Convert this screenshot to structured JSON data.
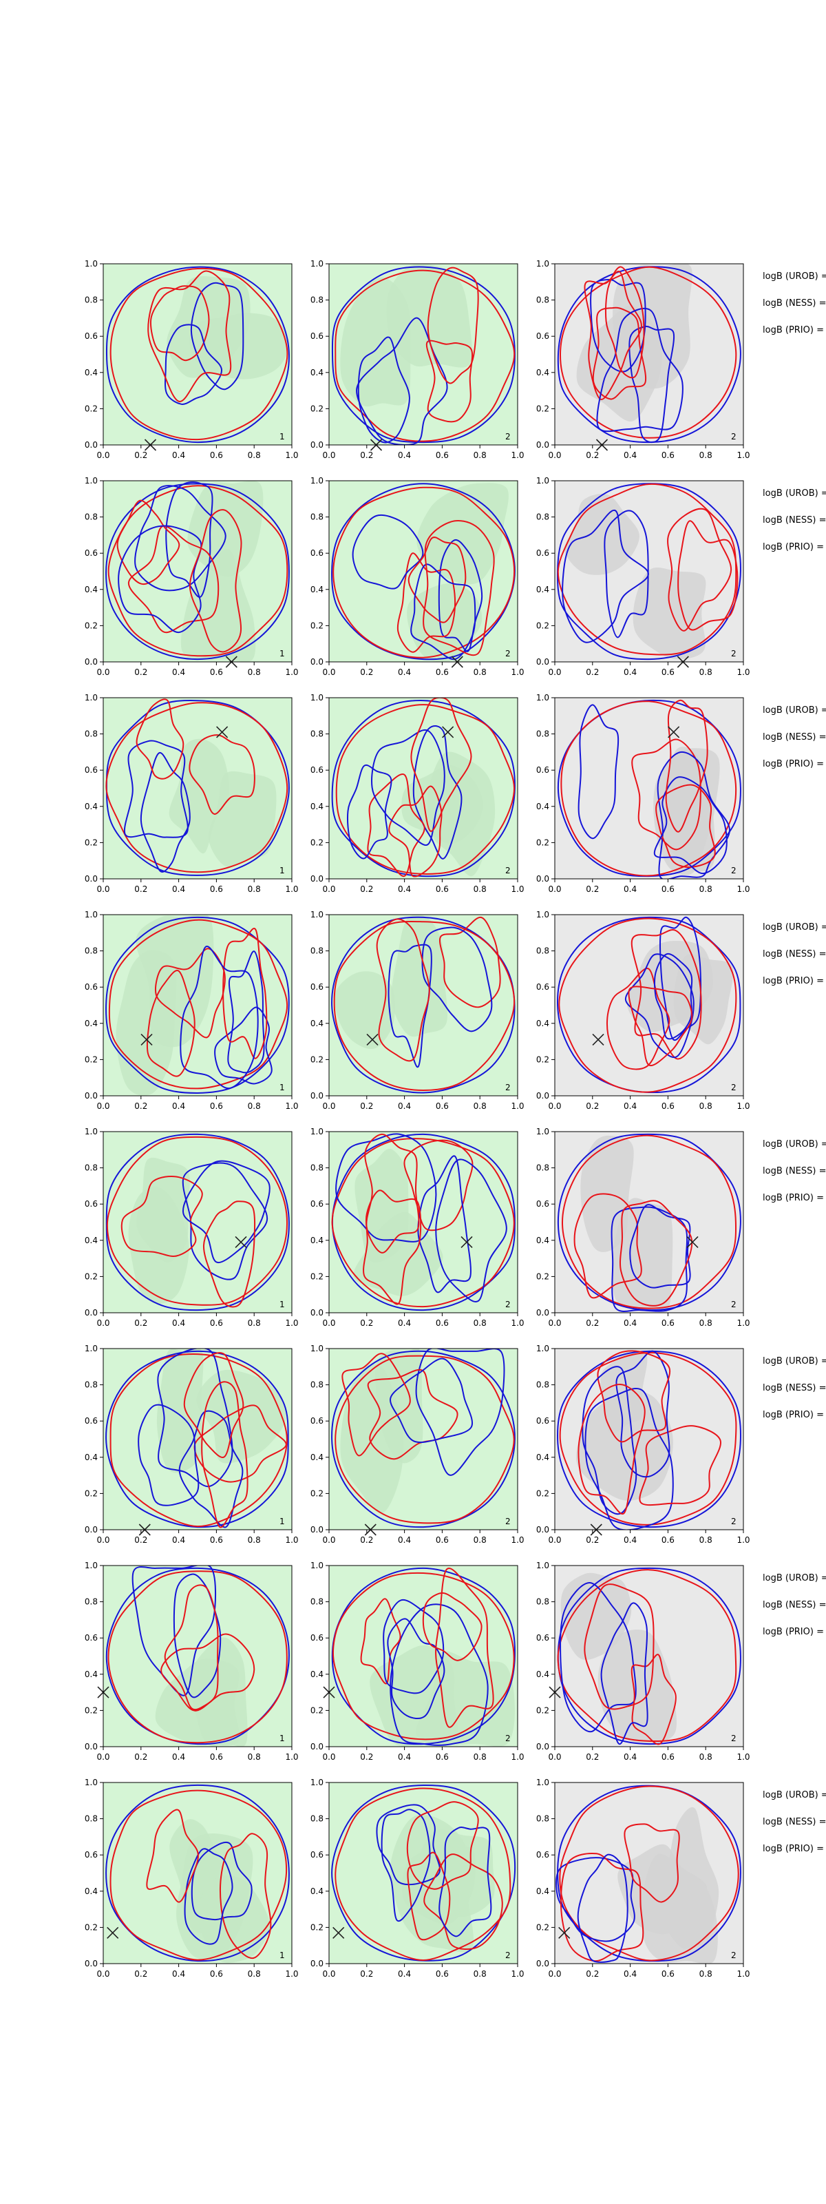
{
  "figure": {
    "rows": 8,
    "cols": 3,
    "side_labels": [
      "logB (UROB) =",
      "logB (NESS) =",
      "logB (PRIO) ="
    ]
  },
  "axes": {
    "xlim": [
      0,
      1
    ],
    "ylim": [
      0,
      1
    ],
    "xticks": [
      "0.0",
      "0.2",
      "0.4",
      "0.6",
      "0.8",
      "1.0"
    ],
    "yticks": [
      "0.0",
      "0.2",
      "0.4",
      "0.6",
      "0.8",
      "1.0"
    ]
  },
  "colors": {
    "contour_a": "#e8141a",
    "contour_b": "#1515d8",
    "fill_green": "#d5f5d5",
    "fill_green_dark": "#c4e7c4",
    "fill_gray": "#e9e9e9",
    "fill_gray_dark": "#d4d4d4",
    "marker": "#222222"
  },
  "chart_data": {
    "type": "contour-grid",
    "xlim": [
      0,
      1
    ],
    "ylim": [
      0,
      1
    ],
    "legend": "none",
    "grid": false,
    "panels_per_row": [
      "green",
      "green",
      "gray"
    ],
    "panel_tags": [
      "1",
      "2",
      "2"
    ],
    "rows": [
      {
        "marker": [
          0.25,
          0.0
        ]
      },
      {
        "marker": [
          0.68,
          0.0
        ]
      },
      {
        "marker": [
          0.63,
          0.81
        ]
      },
      {
        "marker": [
          0.23,
          0.31
        ]
      },
      {
        "marker": [
          0.73,
          0.39
        ]
      },
      {
        "marker": [
          0.22,
          0.0
        ]
      },
      {
        "marker": [
          0.0,
          0.3
        ]
      },
      {
        "marker": [
          0.05,
          0.17
        ]
      }
    ]
  }
}
